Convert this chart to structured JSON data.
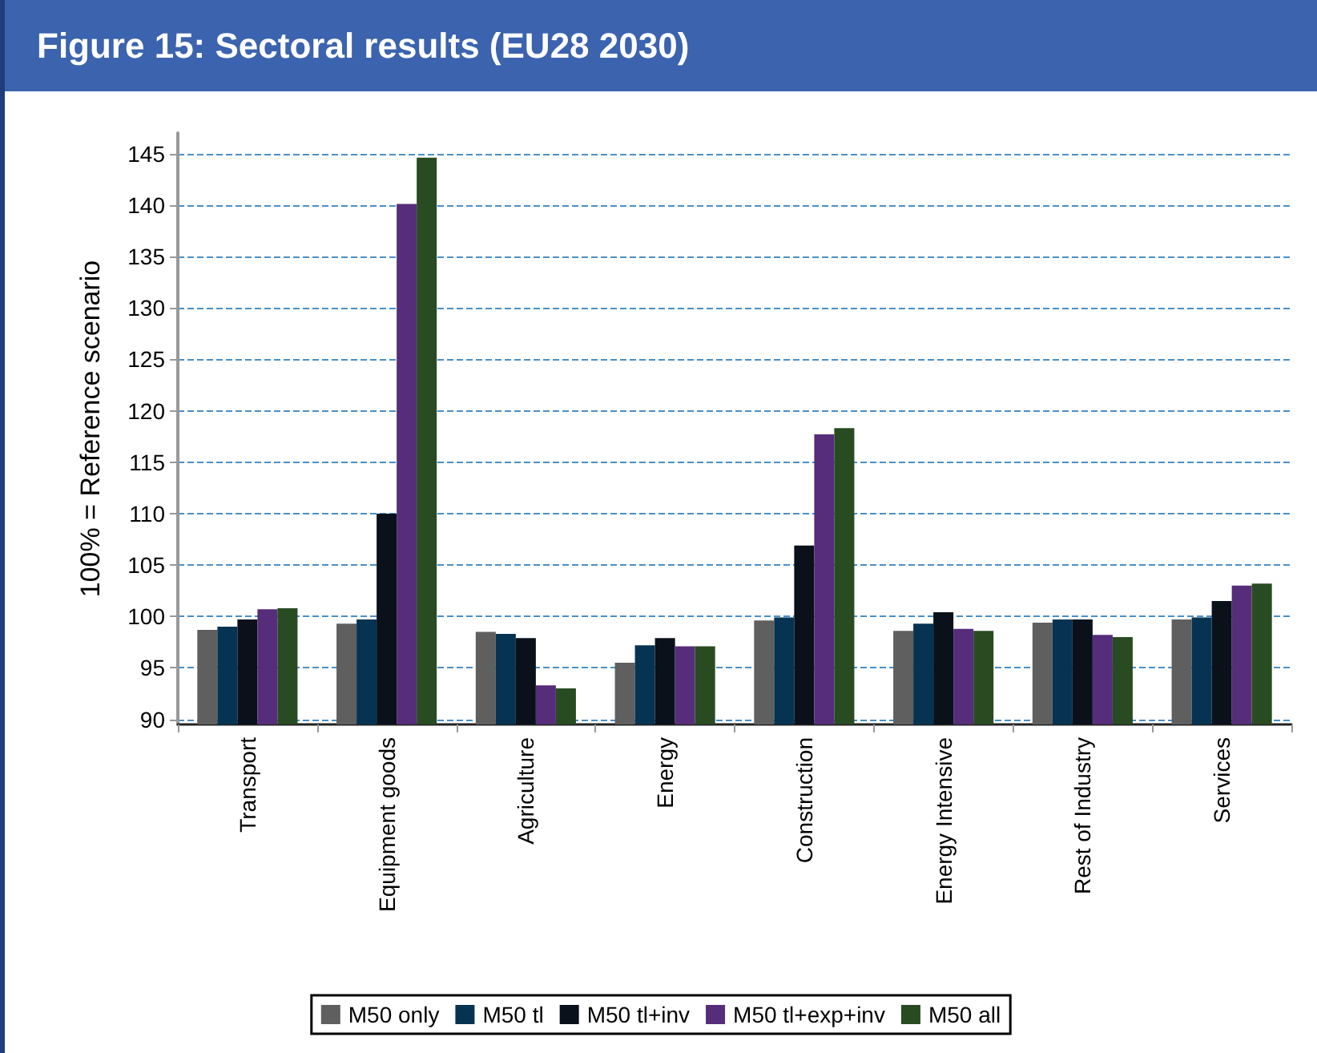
{
  "chart_data": {
    "type": "bar",
    "title": "Figure 15:  Sectoral results (EU28 2030)",
    "ylabel": "100% = Reference scenario",
    "categories": [
      "Transport",
      "Equipment goods",
      "Agriculture",
      "Energy",
      "Construction",
      "Energy Intensive",
      "Rest of Industry",
      "Services"
    ],
    "series": [
      {
        "name": "M50 only",
        "color": "#5f5f5f",
        "values": [
          98.7,
          99.3,
          98.5,
          95.5,
          99.6,
          98.6,
          99.4,
          99.7
        ]
      },
      {
        "name": "M50 tl",
        "color": "#063352",
        "values": [
          99.0,
          99.7,
          98.3,
          97.2,
          99.9,
          99.3,
          99.7,
          99.9
        ]
      },
      {
        "name": "M50 tl+inv",
        "color": "#0a111a",
        "values": [
          99.7,
          110.0,
          97.9,
          97.9,
          106.9,
          100.4,
          99.7,
          101.5
        ]
      },
      {
        "name": "M50 tl+exp+inv",
        "color": "#562d7a",
        "values": [
          100.7,
          140.1,
          93.3,
          97.1,
          117.7,
          98.8,
          98.2,
          103.0
        ]
      },
      {
        "name": "M50 all",
        "color": "#294b22",
        "values": [
          100.8,
          144.6,
          93.0,
          97.1,
          118.3,
          98.6,
          98.0,
          103.2
        ]
      }
    ],
    "ylim": [
      89.5,
      147
    ],
    "yticks": [
      90,
      95,
      100,
      105,
      110,
      115,
      120,
      125,
      130,
      135,
      140,
      145
    ],
    "grid": "y",
    "legend": "bottom"
  }
}
